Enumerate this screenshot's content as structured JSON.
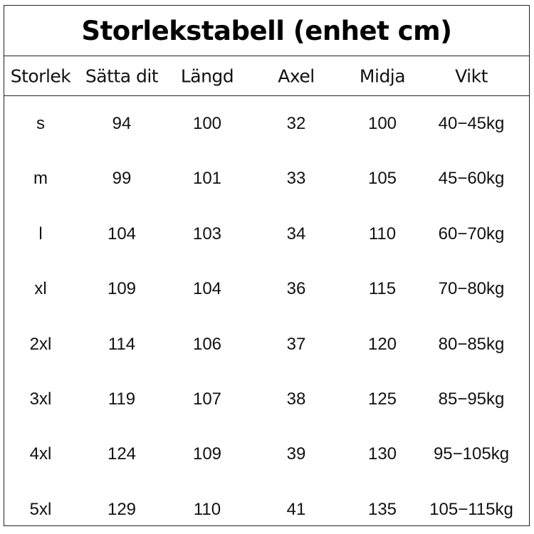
{
  "title": "Storlekstabell (enhet cm)",
  "columns": [
    "Storlek",
    "Sätta dit",
    "Längd",
    "Axel",
    "Midja",
    "Vikt"
  ],
  "rows": [
    [
      "s",
      "94",
      "100",
      "32",
      "100",
      "40−45kg"
    ],
    [
      "m",
      "99",
      "101",
      "33",
      "105",
      "45−60kg"
    ],
    [
      "l",
      "104",
      "103",
      "34",
      "110",
      "60−70kg"
    ],
    [
      "xl",
      "109",
      "104",
      "36",
      "115",
      "70−80kg"
    ],
    [
      "2xl",
      "114",
      "106",
      "37",
      "120",
      "80−85kg"
    ],
    [
      "3xl",
      "119",
      "107",
      "38",
      "125",
      "85−95kg"
    ],
    [
      "4xl",
      "124",
      "109",
      "39",
      "130",
      "95−105kg"
    ],
    [
      "5xl",
      "129",
      "110",
      "41",
      "135",
      "105−115kg"
    ]
  ]
}
